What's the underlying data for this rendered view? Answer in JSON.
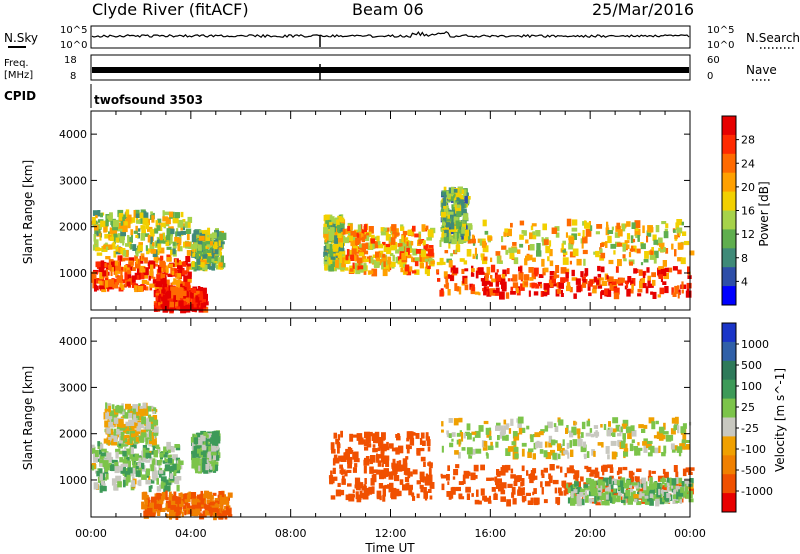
{
  "header": {
    "station": "Clyde River (fitACF)",
    "beam": "Beam 06",
    "date": "25/Mar/2016"
  },
  "left_labels": {
    "nsky": "N.Sky",
    "freq_line1": "Freq.",
    "freq_line2": "[MHz]",
    "cpid": "CPID"
  },
  "right_labels": {
    "nsearch": "N.Search",
    "nave": "Nave"
  },
  "mode_label": "twofsound 3503",
  "noise_panel": {
    "left_ticks": [
      "10^5",
      "10^0"
    ],
    "right_ticks": [
      "10^5",
      "10^0"
    ]
  },
  "freq_panel": {
    "left_ticks": [
      "18",
      "8"
    ],
    "right_ticks": [
      "60",
      "0"
    ]
  },
  "colors": {
    "power_scale": [
      "#0000ff",
      "#2e4ea8",
      "#3f8a78",
      "#5fae4e",
      "#a6d24a",
      "#f2d000",
      "#ffa000",
      "#ff6a00",
      "#ff2a00",
      "#e60000"
    ],
    "velocity_scale": [
      "#1a35c8",
      "#3060a8",
      "#2e7a5a",
      "#3d9a58",
      "#7cc44a",
      "#c8c8c0",
      "#f0a000",
      "#f08000",
      "#f05000",
      "#e80000"
    ]
  },
  "chart_data": [
    {
      "type": "heatmap",
      "title": "",
      "xlabel": "",
      "ylabel": "Slant Range [km]",
      "x_ticks": [
        "00:00",
        "04:00",
        "08:00",
        "12:00",
        "16:00",
        "20:00",
        "00:00"
      ],
      "y_ticks": [
        "1000",
        "2000",
        "3000",
        "4000"
      ],
      "ylim": [
        200,
        4500
      ],
      "colorbar_label": "Power [dB]",
      "colorbar_ticks": [
        "4",
        "8",
        "12",
        "16",
        "20",
        "24",
        "28"
      ],
      "color_range": [
        0,
        32
      ],
      "regions": [
        {
          "t0": 0.0,
          "t1": 3.9,
          "r0": 650,
          "r1": 1350,
          "value": 27
        },
        {
          "t0": 0.0,
          "t1": 3.9,
          "r0": 1400,
          "r1": 2300,
          "value": 15
        },
        {
          "t0": 2.5,
          "t1": 4.5,
          "r0": 200,
          "r1": 650,
          "value": 30
        },
        {
          "t0": 4.0,
          "t1": 5.2,
          "r0": 1100,
          "r1": 1900,
          "value": 14
        },
        {
          "t0": 9.3,
          "t1": 10.0,
          "r0": 1100,
          "r1": 2200,
          "value": 14
        },
        {
          "t0": 10.0,
          "t1": 13.6,
          "r0": 1000,
          "r1": 2000,
          "value": 20
        },
        {
          "t0": 13.8,
          "t1": 24.0,
          "r0": 500,
          "r1": 1100,
          "value": 27
        },
        {
          "t0": 13.8,
          "t1": 24.0,
          "r0": 1200,
          "r1": 2100,
          "value": 18
        },
        {
          "t0": 14.0,
          "t1": 15.0,
          "r0": 1700,
          "r1": 2800,
          "value": 12
        }
      ]
    },
    {
      "type": "heatmap",
      "title": "",
      "xlabel": "Time UT",
      "ylabel": "Slant Range [km]",
      "x_ticks": [
        "00:00",
        "04:00",
        "08:00",
        "12:00",
        "16:00",
        "20:00",
        "00:00"
      ],
      "y_ticks": [
        "1000",
        "2000",
        "3000",
        "4000"
      ],
      "ylim": [
        200,
        4500
      ],
      "colorbar_label": "Velocity [m s^-1]",
      "colorbar_ticks": [
        "1000",
        "500",
        "100",
        "25",
        "-25",
        "-100",
        "-500",
        "-1000"
      ],
      "regions": [
        {
          "t0": 0.0,
          "t1": 3.5,
          "r0": 800,
          "r1": 1800,
          "value": 60
        },
        {
          "t0": 0.5,
          "t1": 2.5,
          "r0": 1800,
          "r1": 2600,
          "value": 0
        },
        {
          "t0": 2.0,
          "t1": 5.5,
          "r0": 200,
          "r1": 700,
          "value": -200
        },
        {
          "t0": 4.0,
          "t1": 5.0,
          "r0": 1200,
          "r1": 2000,
          "value": 80
        },
        {
          "t0": 9.5,
          "t1": 13.6,
          "r0": 600,
          "r1": 2000,
          "value": -400
        },
        {
          "t0": 14.0,
          "t1": 24.0,
          "r0": 500,
          "r1": 1300,
          "value": -300
        },
        {
          "t0": 14.0,
          "t1": 24.0,
          "r0": 1500,
          "r1": 2300,
          "value": 0
        },
        {
          "t0": 19.0,
          "t1": 24.0,
          "r0": 500,
          "r1": 1000,
          "value": 60
        }
      ]
    }
  ]
}
